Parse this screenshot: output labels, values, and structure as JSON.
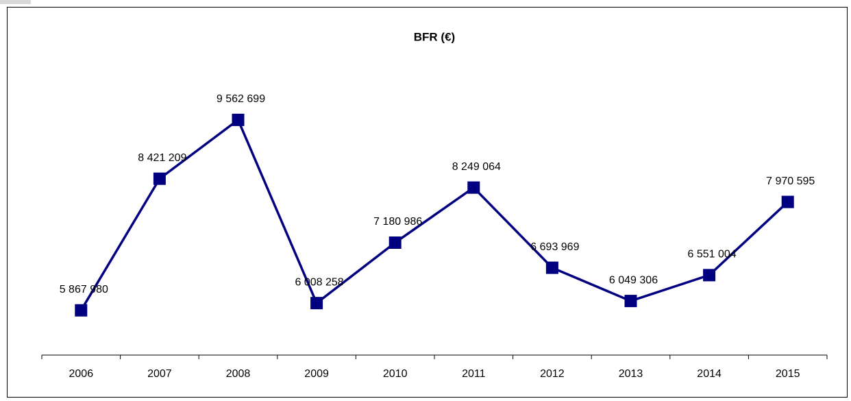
{
  "chart_data": {
    "type": "line",
    "title": "BFR (€)",
    "categories": [
      "2006",
      "2007",
      "2008",
      "2009",
      "2010",
      "2011",
      "2012",
      "2013",
      "2014",
      "2015"
    ],
    "series": [
      {
        "color": "#000080",
        "values": [
          5867980,
          8421209,
          9562699,
          6008258,
          7180986,
          8249064,
          6693969,
          6049306,
          6551004,
          7970595
        ],
        "value_labels": [
          "5 867 980",
          "8 421 209",
          "9 562 699",
          "6 008 258",
          "7 180 986",
          "8 249 064",
          "6 693 969",
          "6 049 306",
          "6 551 004",
          "7 970 595"
        ]
      }
    ],
    "ylim": [
      5000000,
      10000000
    ],
    "grid": false
  }
}
